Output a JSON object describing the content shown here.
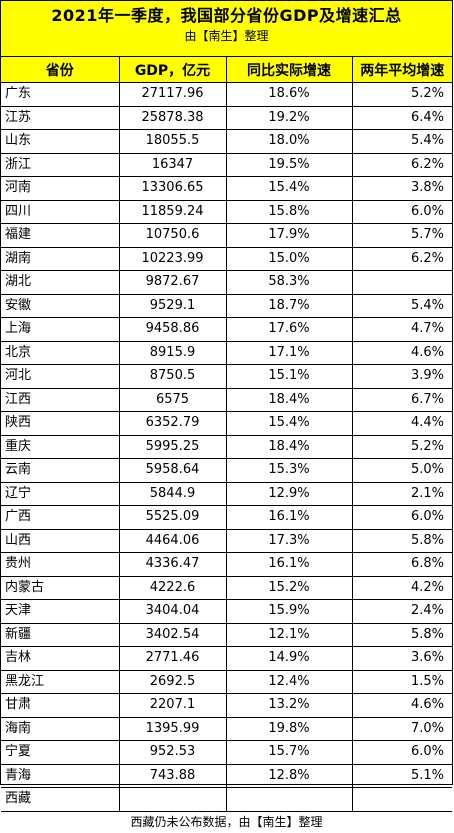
{
  "title": "2021年一季度，我国部分省份GDP及增速汇总",
  "subtitle": "由【南生】整理",
  "headers": [
    "省份",
    "GDP，亿元",
    "同比实际增速",
    "两年平均增速"
  ],
  "rows": [
    [
      "广东",
      "27117.96",
      "18.6%",
      "5.2%"
    ],
    [
      "江苏",
      "25878.38",
      "19.2%",
      "6.4%"
    ],
    [
      "山东",
      "18055.5",
      "18.0%",
      "5.4%"
    ],
    [
      "浙江",
      "16347",
      "19.5%",
      "6.2%"
    ],
    [
      "河南",
      "13306.65",
      "15.4%",
      "3.8%"
    ],
    [
      "四川",
      "11859.24",
      "15.8%",
      "6.0%"
    ],
    [
      "福建",
      "10750.6",
      "17.9%",
      "5.7%"
    ],
    [
      "湖南",
      "10223.99",
      "15.0%",
      "6.2%"
    ],
    [
      "湖北",
      "9872.67",
      "58.3%",
      ""
    ],
    [
      "安徽",
      "9529.1",
      "18.7%",
      "5.4%"
    ],
    [
      "上海",
      "9458.86",
      "17.6%",
      "4.7%"
    ],
    [
      "北京",
      "8915.9",
      "17.1%",
      "4.6%"
    ],
    [
      "河北",
      "8750.5",
      "15.1%",
      "3.9%"
    ],
    [
      "江西",
      "6575",
      "18.4%",
      "6.7%"
    ],
    [
      "陕西",
      "6352.79",
      "15.4%",
      "4.4%"
    ],
    [
      "重庆",
      "5995.25",
      "18.4%",
      "5.2%"
    ],
    [
      "云南",
      "5958.64",
      "15.3%",
      "5.0%"
    ],
    [
      "辽宁",
      "5844.9",
      "12.9%",
      "2.1%"
    ],
    [
      "广西",
      "5525.09",
      "16.1%",
      "6.0%"
    ],
    [
      "山西",
      "4464.06",
      "17.3%",
      "5.8%"
    ],
    [
      "贵州",
      "4336.47",
      "16.1%",
      "6.8%"
    ],
    [
      "内蒙古",
      "4222.6",
      "15.2%",
      "4.2%"
    ],
    [
      "天津",
      "3404.04",
      "15.9%",
      "2.4%"
    ],
    [
      "新疆",
      "3402.54",
      "12.1%",
      "5.8%"
    ],
    [
      "吉林",
      "2771.46",
      "14.9%",
      "3.6%"
    ],
    [
      "黑龙江",
      "2692.5",
      "12.4%",
      "1.5%"
    ],
    [
      "甘肃",
      "2207.1",
      "13.2%",
      "4.6%"
    ],
    [
      "海南",
      "1395.99",
      "19.8%",
      "7.0%"
    ],
    [
      "宁夏",
      "952.53",
      "15.7%",
      "6.0%"
    ],
    [
      "青海",
      "743.88",
      "12.8%",
      "5.1%"
    ],
    [
      "西藏",
      "",
      "",
      ""
    ]
  ],
  "footer": "西藏仍未公布数据，由【南生】整理"
}
